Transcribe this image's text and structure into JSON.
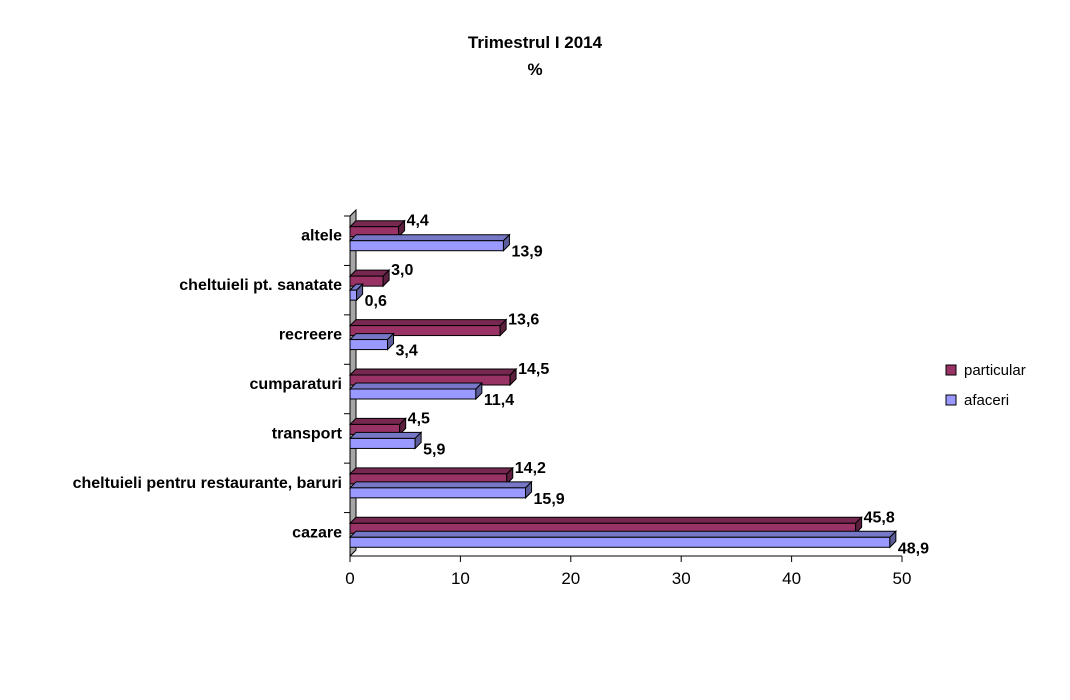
{
  "chart_data": {
    "type": "bar",
    "orientation": "horizontal",
    "title": "Trimestrul I 2014",
    "subtitle": "%",
    "categories": [
      "cazare",
      "cheltuieli pentru restaurante, baruri",
      "transport",
      "cumparaturi",
      "recreere",
      "cheltuieli pt. sanatate",
      "altele"
    ],
    "series": [
      {
        "name": "particular",
        "color": "#993366",
        "values": [
          45.8,
          14.2,
          4.5,
          14.5,
          13.6,
          3.0,
          4.4
        ],
        "labels": [
          "45,8",
          "14,2",
          "4,5",
          "14,5",
          "13,6",
          "3,0",
          "4,4"
        ]
      },
      {
        "name": "afaceri",
        "color": "#9999ff",
        "values": [
          48.9,
          15.9,
          5.9,
          11.4,
          3.4,
          0.6,
          13.9
        ],
        "labels": [
          "48,9",
          "15,9",
          "5,9",
          "11,4",
          "3,4",
          "0,6",
          "13,9"
        ]
      }
    ],
    "xlim": [
      0,
      50
    ],
    "xticks": [
      0,
      10,
      20,
      30,
      40,
      50
    ],
    "grid": false,
    "legend": "right"
  }
}
